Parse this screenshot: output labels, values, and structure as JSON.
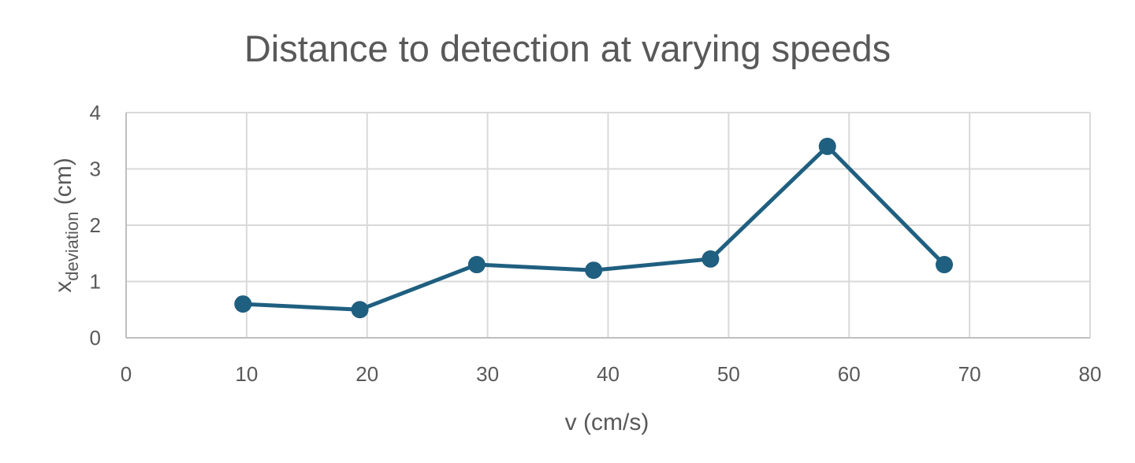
{
  "chart_data": {
    "type": "scatter",
    "title": "Distance to detection at varying speeds",
    "xlabel": "v (cm/s)",
    "ylabel": {
      "base": "x",
      "subscript": "deviation",
      "suffix": " (cm)"
    },
    "xlim": [
      0,
      80
    ],
    "ylim": [
      0,
      4
    ],
    "x_ticks": [
      "0",
      "10",
      "20",
      "30",
      "40",
      "50",
      "60",
      "70",
      "80"
    ],
    "y_ticks": [
      "0",
      "1",
      "2",
      "3",
      "4"
    ],
    "grid": true,
    "legend": "none",
    "series": [
      {
        "color": "#1f5f80",
        "line": true,
        "markers": "circle",
        "points": [
          {
            "x": 9.7,
            "y": 0.6
          },
          {
            "x": 19.4,
            "y": 0.5
          },
          {
            "x": 29.1,
            "y": 1.3
          },
          {
            "x": 38.8,
            "y": 1.2
          },
          {
            "x": 48.5,
            "y": 1.4
          },
          {
            "x": 58.2,
            "y": 3.4
          },
          {
            "x": 67.9,
            "y": 1.3
          }
        ]
      }
    ]
  }
}
